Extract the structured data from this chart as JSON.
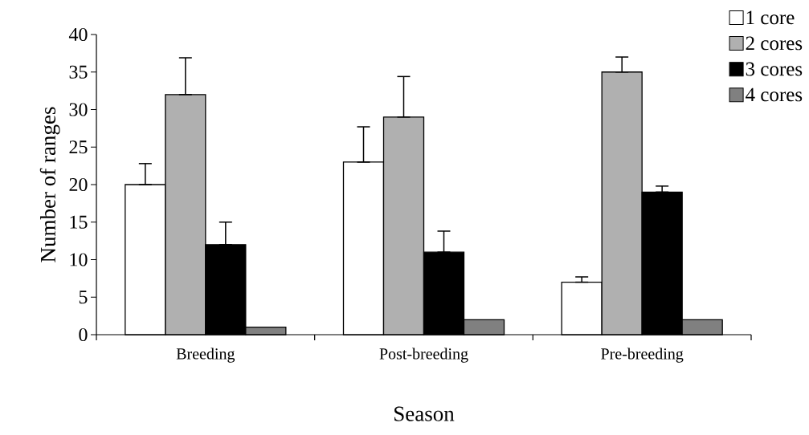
{
  "chart_data": {
    "type": "bar",
    "xlabel": "Season",
    "ylabel": "Number of ranges",
    "categories": [
      "Breeding",
      "Post-breeding",
      "Pre-breeding"
    ],
    "series": [
      {
        "name": "1 core",
        "color": "#ffffff",
        "values": [
          20,
          23,
          7
        ],
        "errors": [
          [
            20,
            22.8
          ],
          [
            23,
            27.7
          ],
          [
            7,
            7.7
          ]
        ]
      },
      {
        "name": "2 cores",
        "color": "#b0b0b0",
        "values": [
          32,
          29,
          35
        ],
        "errors": [
          [
            32,
            36.9
          ],
          [
            29,
            34.4
          ],
          [
            35,
            37
          ]
        ]
      },
      {
        "name": "3 cores",
        "color": "#000000",
        "values": [
          12,
          11,
          19
        ],
        "errors": [
          [
            12,
            15
          ],
          [
            11,
            13.8
          ],
          [
            19,
            19.8
          ]
        ]
      },
      {
        "name": "4 cores",
        "color": "#808080",
        "values": [
          1,
          2,
          2
        ]
      }
    ],
    "ylim": [
      0,
      40
    ],
    "yticks": [
      0,
      5,
      10,
      15,
      20,
      25,
      30,
      35,
      40
    ],
    "legend": "top right"
  }
}
